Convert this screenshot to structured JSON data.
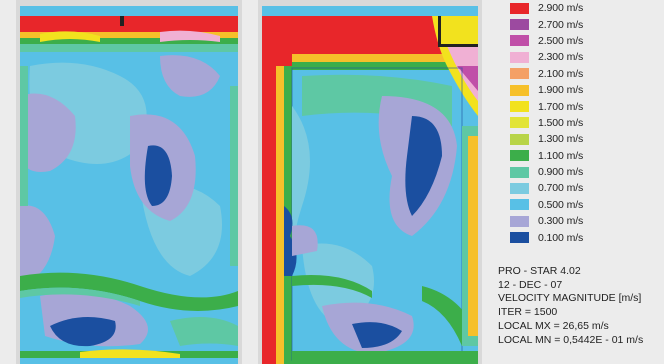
{
  "legend": {
    "items": [
      {
        "label": "2.900 m/s",
        "color": "#e8262a"
      },
      {
        "label": "2.700 m/s",
        "color": "#9c4aa0"
      },
      {
        "label": "2.500 m/s",
        "color": "#c04fa8"
      },
      {
        "label": "2.300 m/s",
        "color": "#f0b0d4"
      },
      {
        "label": "2.100 m/s",
        "color": "#f4a066"
      },
      {
        "label": "1.900 m/s",
        "color": "#f6c02a"
      },
      {
        "label": "1.700 m/s",
        "color": "#f2e21e"
      },
      {
        "label": "1.500 m/s",
        "color": "#e2e436"
      },
      {
        "label": "1.300 m/s",
        "color": "#b8d448"
      },
      {
        "label": "1.100 m/s",
        "color": "#3cae4a"
      },
      {
        "label": "0.900 m/s",
        "color": "#5ec8a4"
      },
      {
        "label": "0.700 m/s",
        "color": "#7ccbe0"
      },
      {
        "label": "0.500 m/s",
        "color": "#58c0e6"
      },
      {
        "label": "0.300 m/s",
        "color": "#a7a6d6"
      },
      {
        "label": "0.100 m/s",
        "color": "#1b4fa0"
      }
    ]
  },
  "info": {
    "software": "PRO - STAR 4.02",
    "date": "12 - DEC - 07",
    "quantity": "VELOCITY MAGNITUDE [m/s]",
    "iter": "ITER = 1500",
    "local_max": "LOCAL MX = 26,65 m/s",
    "local_min": "LOCAL MN = 0,5442E - 01 m/s"
  }
}
